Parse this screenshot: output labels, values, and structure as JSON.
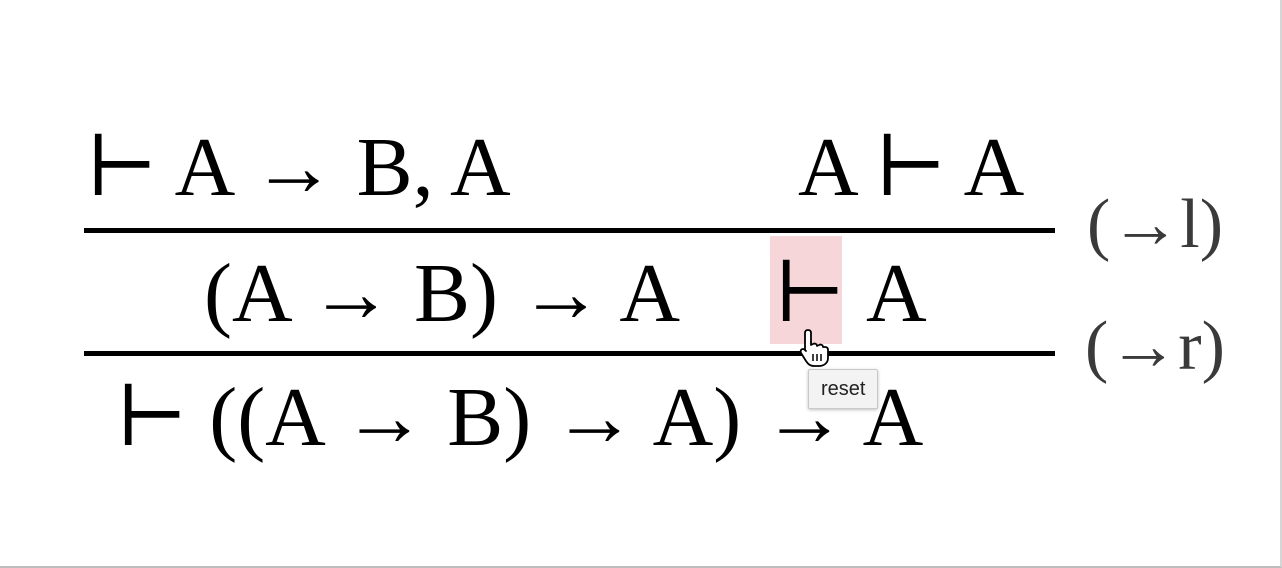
{
  "proof": {
    "premise_left": "⊢ A → B, A",
    "premise_right": "A ⊢ A",
    "rule_top_label": "(→l)",
    "middle_antecedent": "(A → B) → A",
    "middle_turnstile": "⊢",
    "middle_succedent": "A",
    "rule_bottom_label": "(→r)",
    "conclusion": "⊢ ((A → B) → A) → A"
  },
  "tooltip": {
    "text": "reset"
  },
  "colors": {
    "highlight": "#f7d6da",
    "label": "#3a3a3a"
  },
  "icons": {
    "cursor": "hand-pointer-icon"
  }
}
